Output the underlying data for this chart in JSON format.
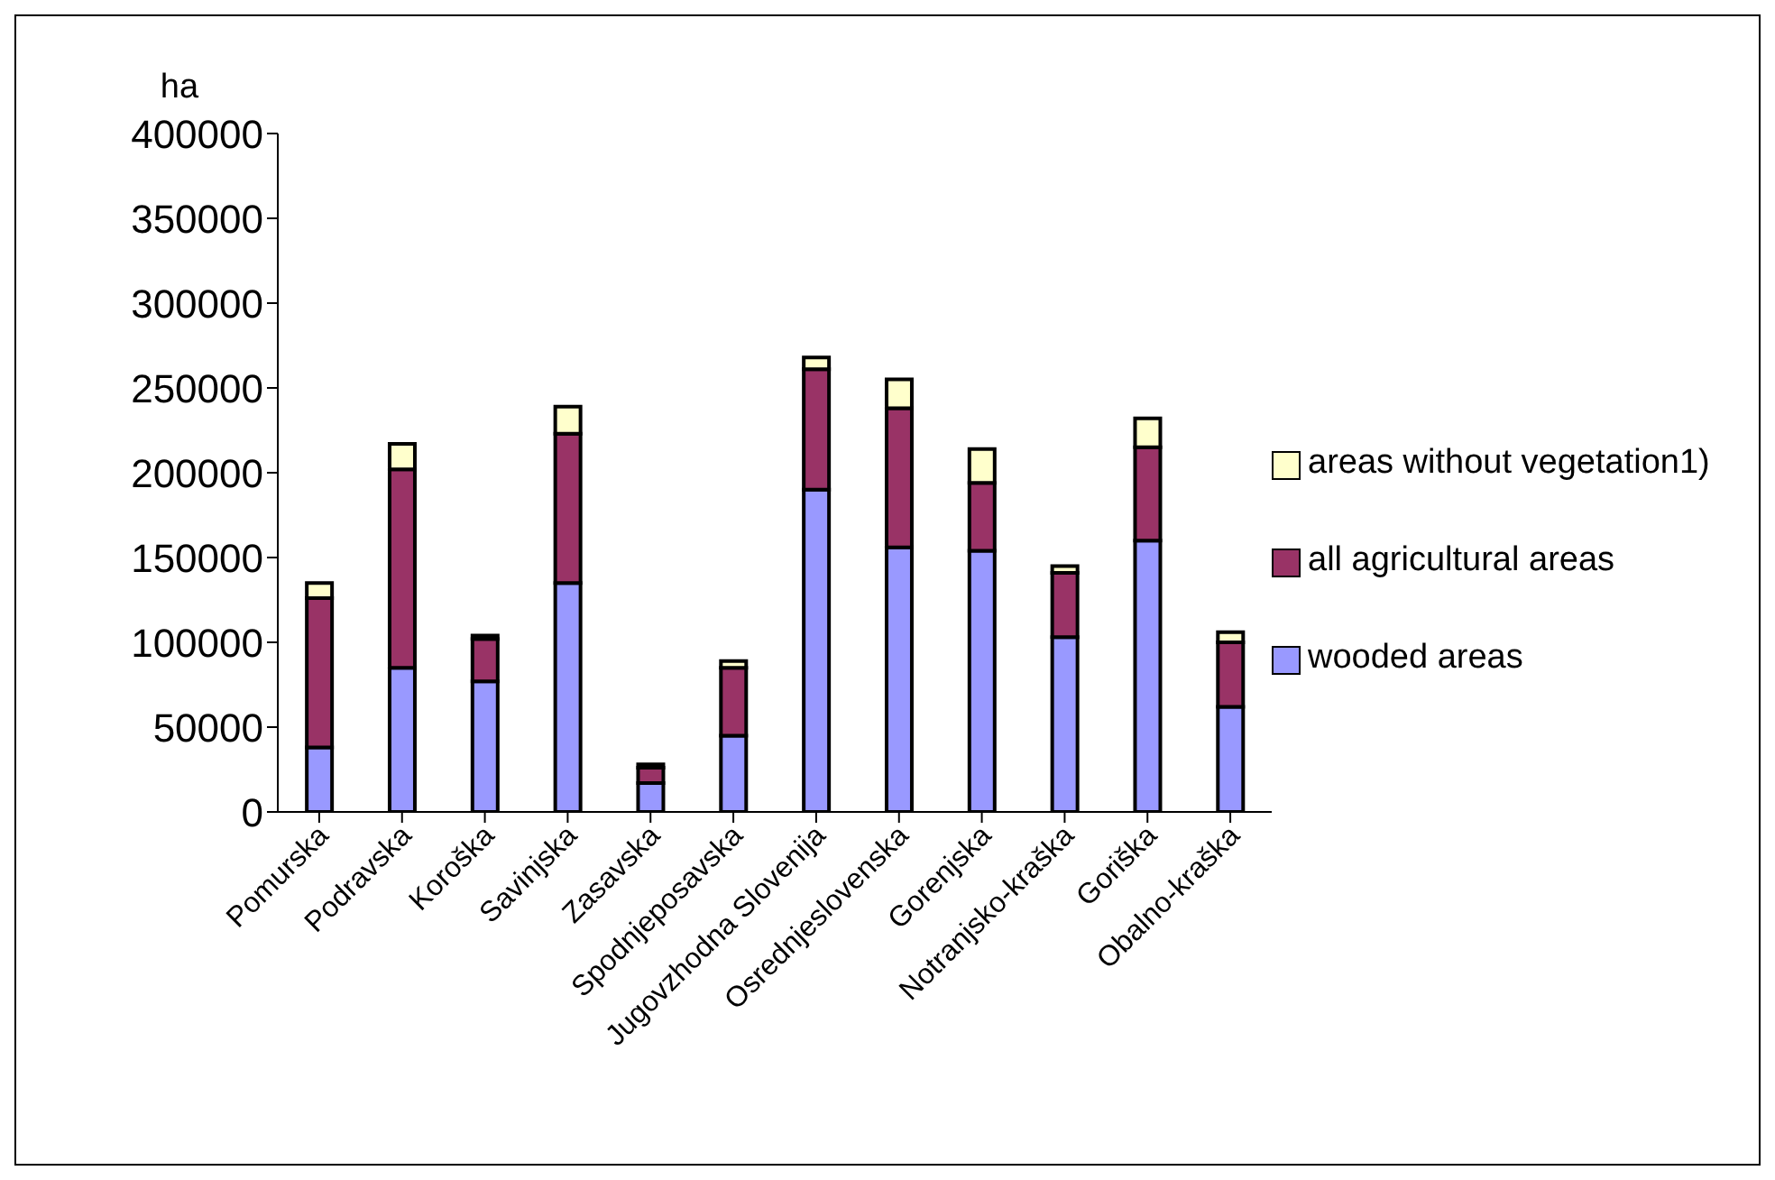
{
  "chart_data": {
    "type": "bar",
    "stacked": true,
    "ylabel": "ha",
    "categories": [
      "Pomurska",
      "Podravska",
      "Koroška",
      "Savinjska",
      "Zasavska",
      "Spodnjeposavska",
      "Jugovzhodna Slovenija",
      "Osrednjeslovenska",
      "Gorenjska",
      "Notranjsko-kraška",
      "Goriška",
      "Obalno-kraška"
    ],
    "series": [
      {
        "name": "wooded areas",
        "color": "#9999ff",
        "values": [
          38000,
          85000,
          77000,
          135000,
          17000,
          45000,
          190000,
          156000,
          154000,
          103000,
          160000,
          62000
        ]
      },
      {
        "name": "all agricultural areas",
        "color": "#993366",
        "values": [
          88000,
          117000,
          25000,
          88000,
          9000,
          40000,
          71000,
          82000,
          40000,
          38000,
          55000,
          38000
        ]
      },
      {
        "name": "areas without vegetation1)",
        "color": "#ffffcc",
        "values": [
          9000,
          15000,
          2000,
          16000,
          2000,
          4000,
          7000,
          17000,
          20000,
          4000,
          17000,
          6000
        ]
      }
    ],
    "ylim": [
      0,
      400000
    ],
    "yticks": [
      0,
      50000,
      100000,
      150000,
      200000,
      250000,
      300000,
      350000,
      400000
    ],
    "grid": false,
    "legend": "right"
  }
}
